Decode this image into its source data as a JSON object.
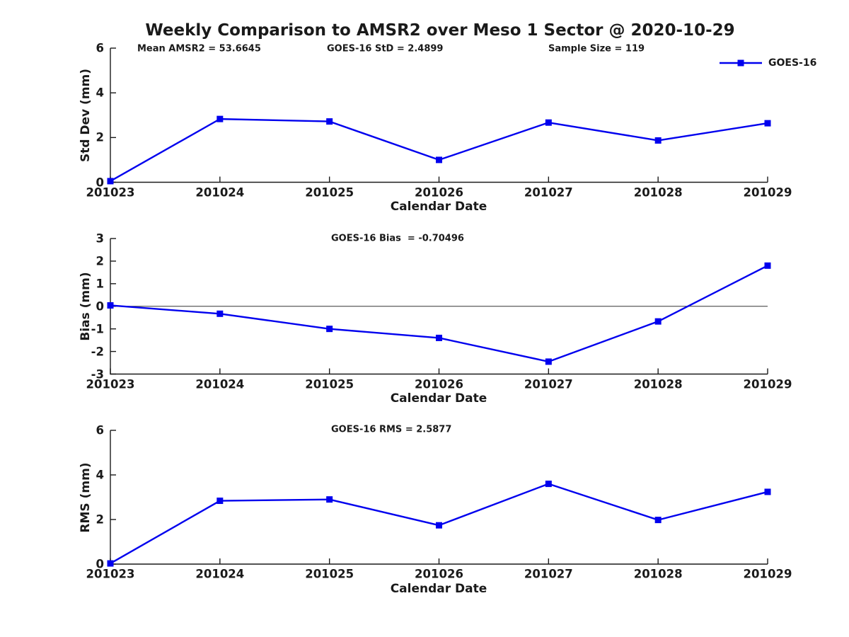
{
  "title": "Weekly Comparison to AMSR2 over Meso 1 Sector @ 2020-10-29",
  "legend": {
    "label": "GOES-16",
    "series_color": "#0000EE"
  },
  "colors": {
    "series": "#0000EE",
    "axis": "#1a1a1a",
    "zero_line": "#333333",
    "background": "#ffffff"
  },
  "chart_data": [
    {
      "type": "line",
      "panel": "std-dev",
      "annotations": [
        "Mean AMSR2 = 53.6645",
        "GOES-16 StD = 2.4899",
        "Sample Size = 119"
      ],
      "categories": [
        "201023",
        "201024",
        "201025",
        "201026",
        "201027",
        "201028",
        "201029"
      ],
      "series": [
        {
          "name": "GOES-16",
          "values": [
            0.05,
            2.83,
            2.72,
            1.0,
            2.67,
            1.87,
            2.64
          ]
        }
      ],
      "xlabel": "Calendar Date",
      "ylabel": "Std Dev (mm)",
      "ylim": [
        0,
        6
      ],
      "yticks": [
        0,
        2,
        4,
        6
      ],
      "grid": false,
      "legend_position": "top-right-outside",
      "zero_line": false
    },
    {
      "type": "line",
      "panel": "bias",
      "annotations": [
        "GOES-16 Bias  = -0.70496"
      ],
      "categories": [
        "201023",
        "201024",
        "201025",
        "201026",
        "201027",
        "201028",
        "201029"
      ],
      "series": [
        {
          "name": "GOES-16",
          "values": [
            0.04,
            -0.33,
            -1.0,
            -1.4,
            -2.45,
            -0.67,
            1.8
          ]
        }
      ],
      "xlabel": "Calendar Date",
      "ylabel": "Bias (mm)",
      "ylim": [
        -3,
        3
      ],
      "yticks": [
        -3,
        -2,
        -1,
        0,
        1,
        2,
        3
      ],
      "grid": false,
      "legend_position": "none",
      "zero_line": true
    },
    {
      "type": "line",
      "panel": "rms",
      "annotations": [
        "GOES-16 RMS = 2.5877"
      ],
      "categories": [
        "201023",
        "201024",
        "201025",
        "201026",
        "201027",
        "201028",
        "201029"
      ],
      "series": [
        {
          "name": "GOES-16",
          "values": [
            0.03,
            2.84,
            2.9,
            1.74,
            3.6,
            1.98,
            3.24
          ]
        }
      ],
      "xlabel": "Calendar Date",
      "ylabel": "RMS (mm)",
      "ylim": [
        0,
        6
      ],
      "yticks": [
        0,
        2,
        4,
        6
      ],
      "grid": false,
      "legend_position": "none",
      "zero_line": false
    }
  ]
}
